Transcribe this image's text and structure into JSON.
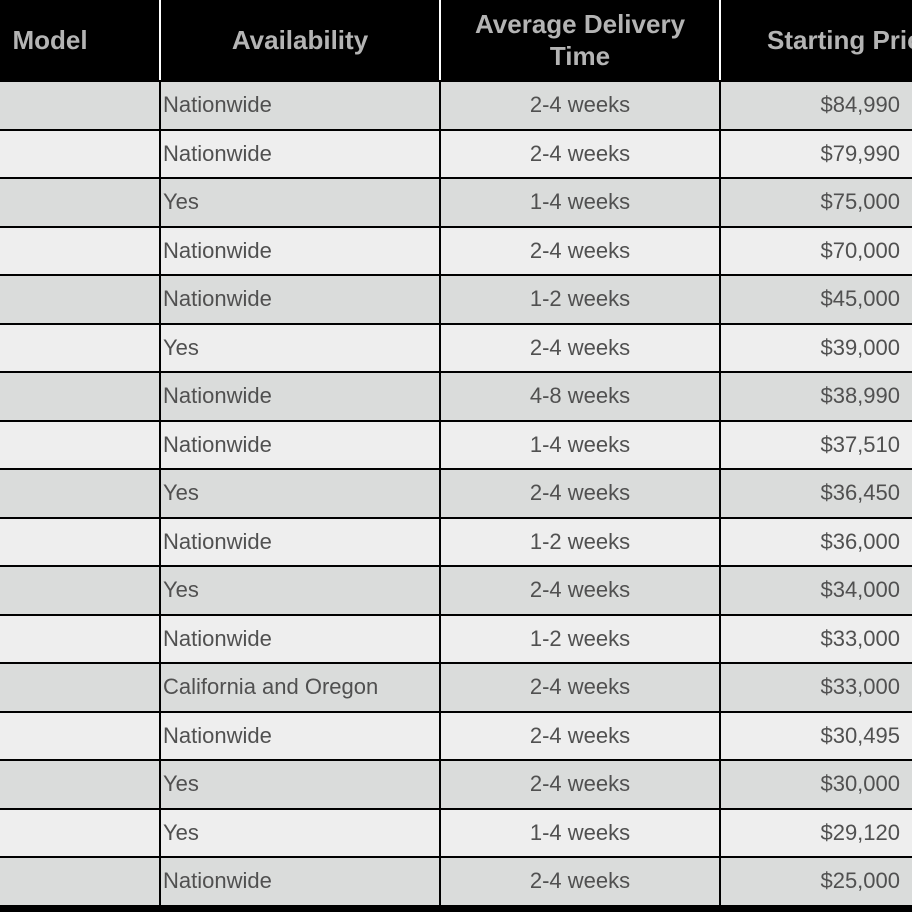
{
  "table": {
    "headers": {
      "model": "Model",
      "availability": "Availability",
      "delivery_line1": "Average Delivery",
      "delivery_line2": "Time",
      "price": "Starting Price"
    },
    "rows": [
      {
        "availability": "Nationwide",
        "delivery": "2-4 weeks",
        "price": "$84,990"
      },
      {
        "availability": "Nationwide",
        "delivery": "2-4 weeks",
        "price": "$79,990"
      },
      {
        "availability": "Yes",
        "delivery": "1-4 weeks",
        "price": "$75,000"
      },
      {
        "availability": "Nationwide",
        "delivery": "2-4 weeks",
        "price": "$70,000"
      },
      {
        "availability": "Nationwide",
        "delivery": "1-2 weeks",
        "price": "$45,000"
      },
      {
        "availability": "Yes",
        "delivery": "2-4 weeks",
        "price": "$39,000"
      },
      {
        "availability": "Nationwide",
        "delivery": "4-8 weeks",
        "price": "$38,990"
      },
      {
        "availability": "Nationwide",
        "delivery": "1-4 weeks",
        "price": "$37,510"
      },
      {
        "availability": "Yes",
        "delivery": "2-4 weeks",
        "price": "$36,450"
      },
      {
        "availability": "Nationwide",
        "delivery": "1-2 weeks",
        "price": "$36,000"
      },
      {
        "availability": "Yes",
        "delivery": "2-4 weeks",
        "price": "$34,000"
      },
      {
        "availability": "Nationwide",
        "delivery": "1-2 weeks",
        "price": "$33,000"
      },
      {
        "availability": "California and Oregon",
        "delivery": "2-4 weeks",
        "price": "$33,000"
      },
      {
        "availability": "Nationwide",
        "delivery": "2-4 weeks",
        "price": "$30,495"
      },
      {
        "availability": "Yes",
        "delivery": "2-4 weeks",
        "price": "$30,000"
      },
      {
        "availability": "Yes",
        "delivery": "1-4 weeks",
        "price": "$29,120"
      },
      {
        "availability": "Nationwide",
        "delivery": "2-4 weeks",
        "price": "$25,000"
      }
    ]
  },
  "colors": {
    "header_bg": "#000000",
    "header_text": "#b4b4b4",
    "row_dark": "#dadcdb",
    "row_light": "#eeeeee",
    "cell_text": "#505050"
  }
}
